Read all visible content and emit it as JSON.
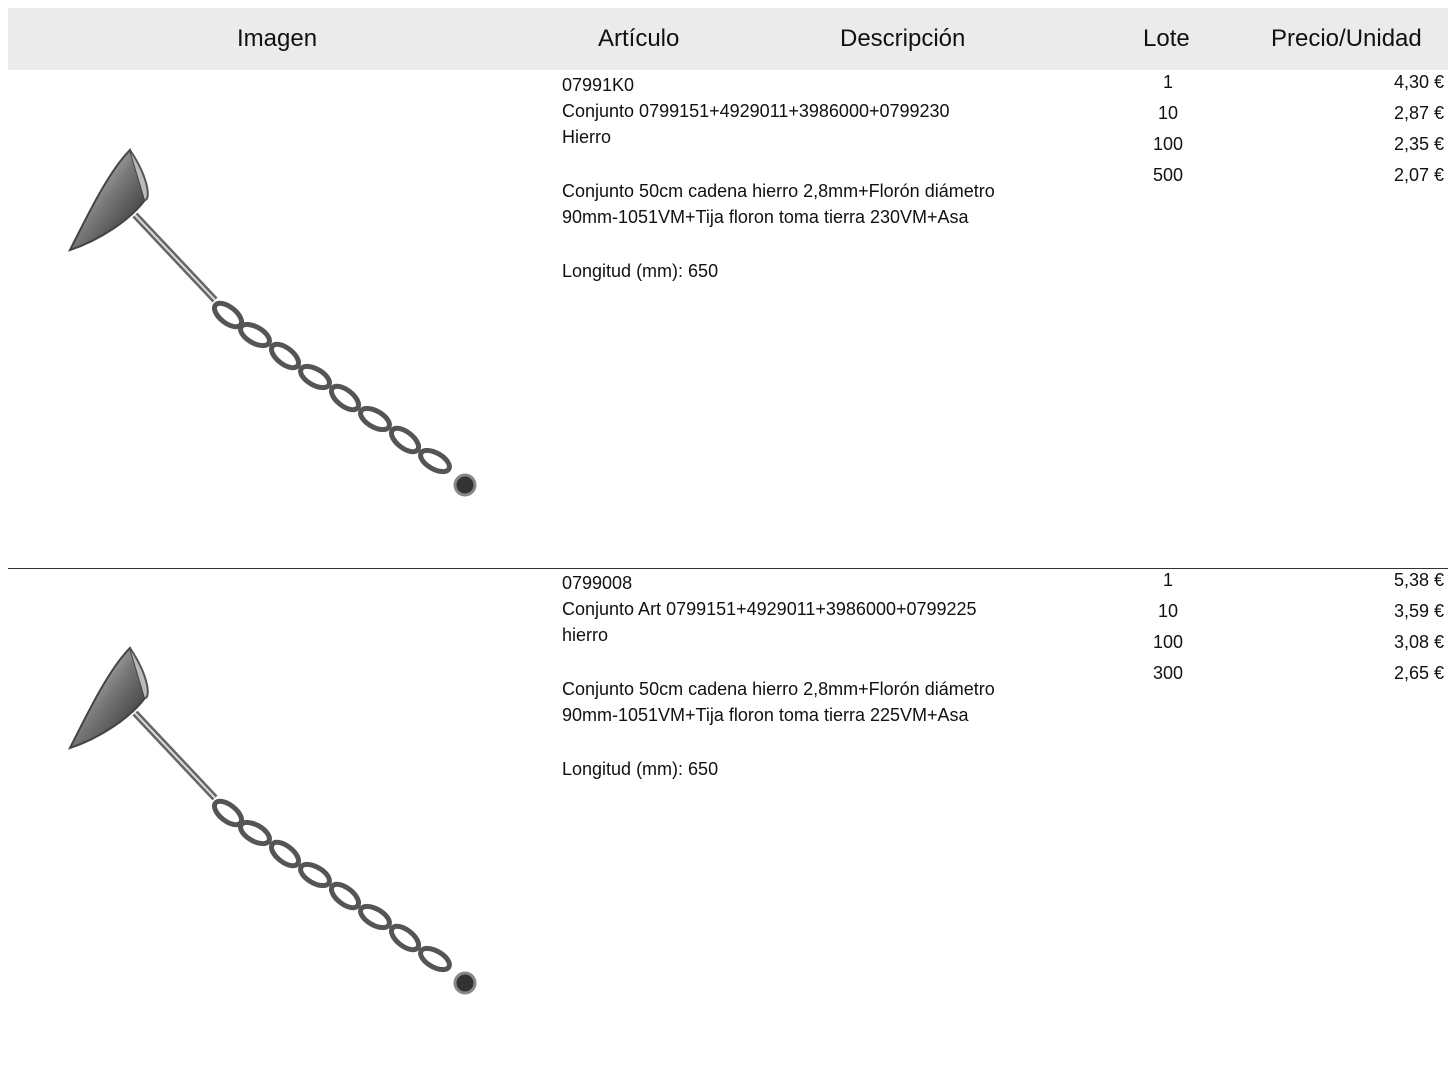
{
  "header": [
    "Imagen",
    "Artículo",
    "Descripción",
    "Lote",
    "Precio/Unidad"
  ],
  "items": [
    {
      "code": "07991K0",
      "name": "Conjunto 0799151+4929011+3986000+0799230",
      "material": "Hierro",
      "description": [
        "Conjunto 50cm cadena hierro 2,8mm+Florón diámetro",
        "90mm-1051VM+Tija floron toma tierra 230VM+Asa"
      ],
      "length": "Longitud (mm): 650",
      "lots": [
        1,
        10,
        100,
        500
      ],
      "prices": [
        "4,30 €",
        "2,87 €",
        "2,35 €",
        "2,07 €"
      ]
    },
    {
      "code": "0799008",
      "name": "Conjunto Art 0799151+4929011+3986000+0799225",
      "material": "hierro",
      "description": [
        "Conjunto 50cm cadena hierro 2,8mm+Florón diámetro",
        "90mm-1051VM+Tija floron toma tierra 225VM+Asa"
      ],
      "length": "Longitud (mm): 650",
      "lots": [
        1,
        10,
        100,
        300
      ],
      "prices": [
        "5,38 €",
        "3,59 €",
        "3,08 €",
        "2,65 €"
      ]
    }
  ]
}
